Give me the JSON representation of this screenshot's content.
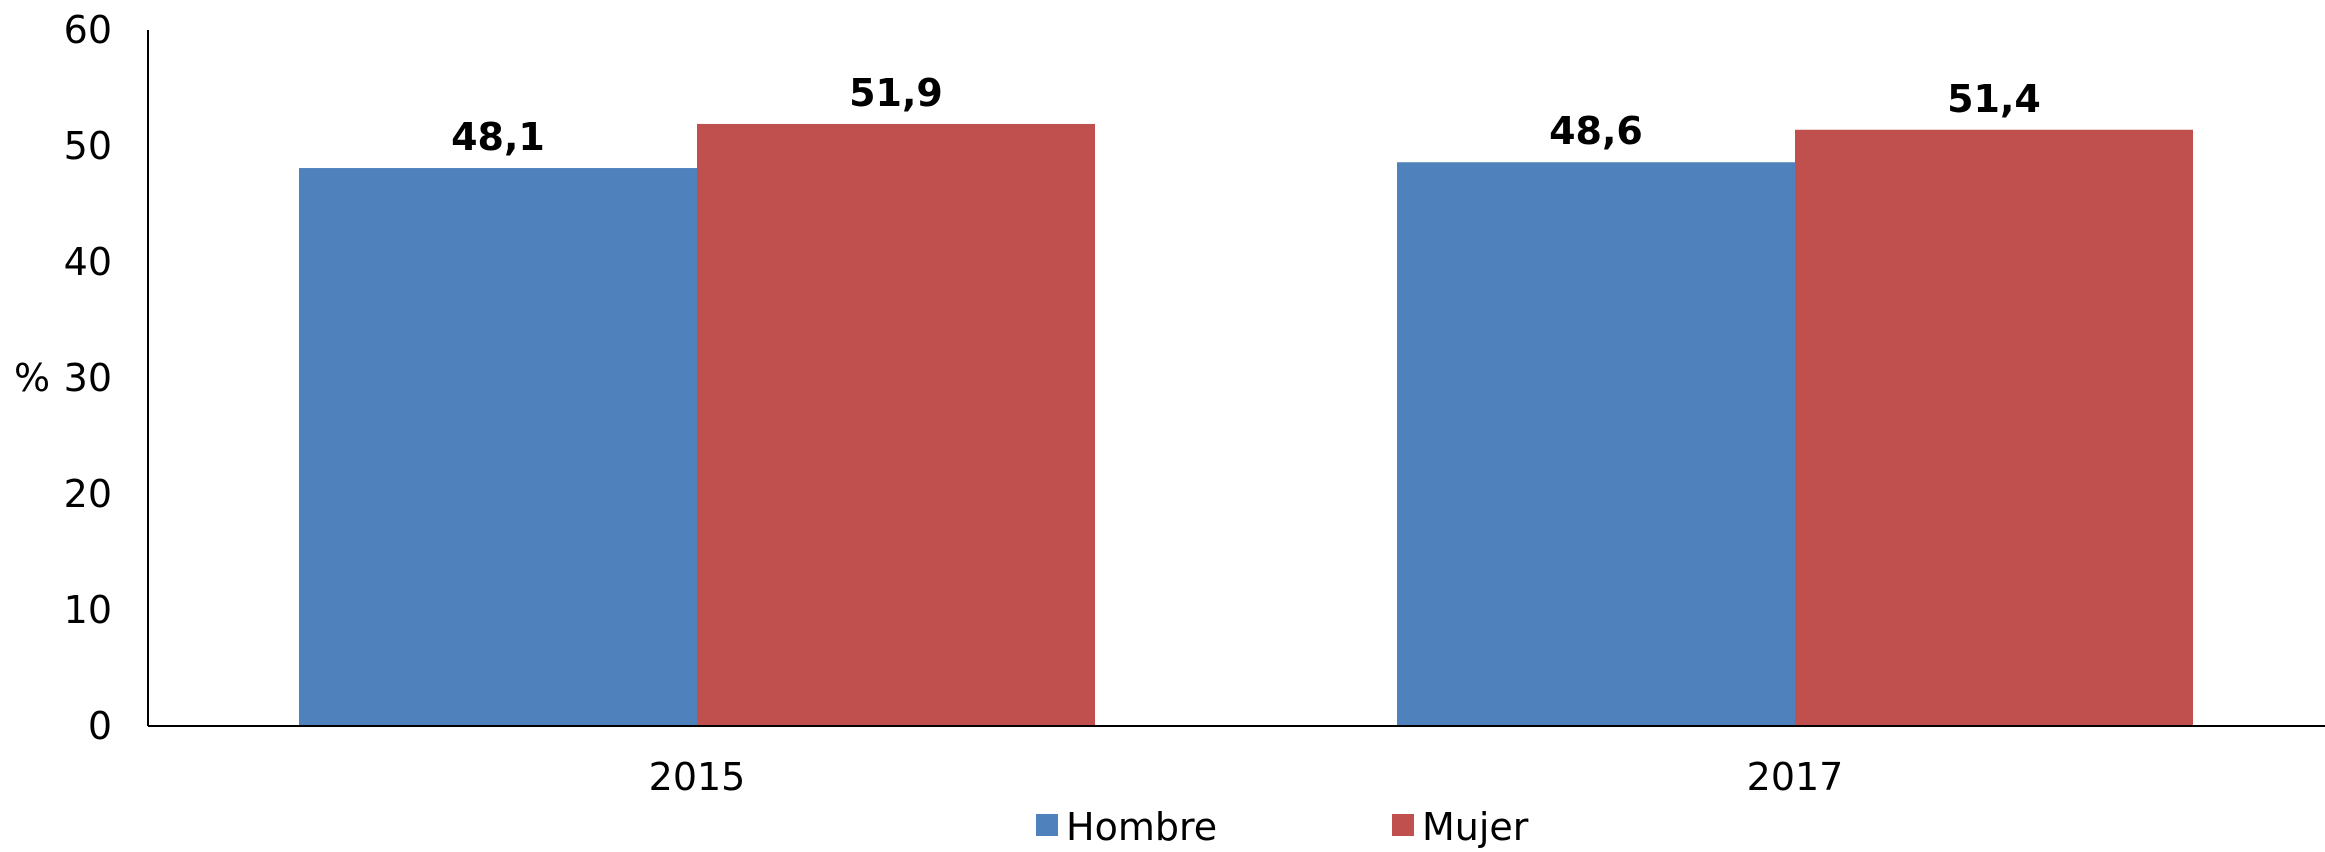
{
  "chart_data": {
    "type": "bar",
    "title": "",
    "xlabel": "",
    "ylabel": "%",
    "ylim": [
      0,
      60
    ],
    "yticks": [
      0,
      10,
      20,
      30,
      40,
      50,
      60
    ],
    "grid": false,
    "legend_position": "bottom",
    "categories": [
      "2015",
      "2017"
    ],
    "series": [
      {
        "name": "Hombre",
        "values": [
          48.1,
          48.6
        ],
        "labels": [
          "48,1",
          "48,6"
        ],
        "color": "#4F81BD"
      },
      {
        "name": "Mujer",
        "values": [
          51.9,
          51.4
        ],
        "labels": [
          "51,9",
          "51,4"
        ],
        "color": "#C0504D"
      }
    ]
  }
}
